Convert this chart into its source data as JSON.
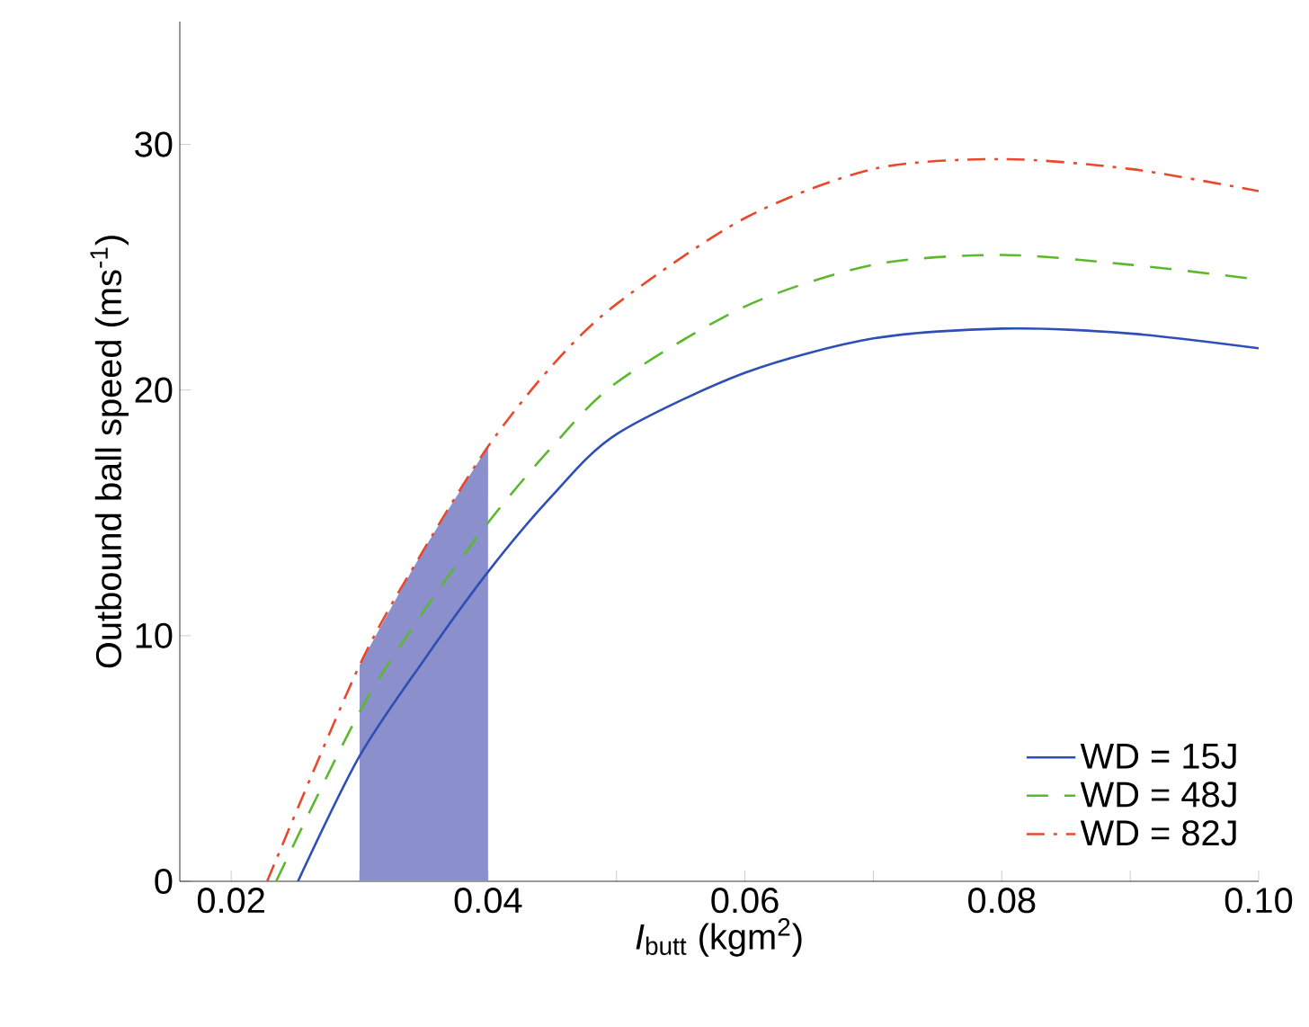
{
  "chart_data": {
    "type": "line",
    "xlabel": "*I*$_{butt}$ (kgm$^{2}$)",
    "ylabel": "Outbound ball speed (ms$^{-1}$)",
    "xlim": [
      0.016,
      0.1
    ],
    "ylim": [
      0,
      35
    ],
    "xticks": [
      0.02,
      {
        "value": 0.03,
        "label": null
      },
      0.04,
      {
        "value": 0.05,
        "label": null
      },
      0.06,
      {
        "value": 0.07,
        "label": null
      },
      0.08,
      {
        "value": 0.09,
        "label": null
      },
      {
        "value": 0.1,
        "label": "0.10"
      }
    ],
    "yticks": [
      0,
      10,
      20,
      30
    ],
    "legend": "bottom right",
    "grid": false,
    "series": [
      {
        "type": "area",
        "color": "#8b8fcc",
        "x": [
          0.03,
          0.035,
          0.04
        ],
        "values": [
          8.8,
          13.5,
          17.7
        ]
      },
      {
        "name": "WD = 15J",
        "color": "#2e4fb5",
        "line_style": "solid",
        "x": [
          0.0252,
          0.03,
          0.035,
          0.04,
          0.045,
          0.05,
          0.06,
          0.07,
          0.08,
          0.09,
          0.1
        ],
        "values": [
          0,
          5.1,
          9.0,
          12.6,
          15.7,
          18.2,
          20.7,
          22.1,
          22.5,
          22.3,
          21.7
        ]
      },
      {
        "name": "WD = 48J",
        "color": "#5cb82e",
        "line_style": "dashed",
        "x": [
          0.0235,
          0.03,
          0.035,
          0.04,
          0.045,
          0.05,
          0.06,
          0.07,
          0.08,
          0.09,
          0.1
        ],
        "values": [
          0,
          6.9,
          11.0,
          14.6,
          17.7,
          20.3,
          23.4,
          25.1,
          25.5,
          25.1,
          24.5
        ]
      },
      {
        "name": "WD = 82J",
        "color": "#e8492c",
        "line_style": "dashdotted",
        "x": [
          0.0228,
          0.03,
          0.035,
          0.04,
          0.045,
          0.05,
          0.06,
          0.07,
          0.08,
          0.09,
          0.1
        ],
        "values": [
          0,
          8.8,
          13.5,
          17.7,
          21.0,
          23.5,
          27.0,
          29.0,
          29.4,
          29.0,
          28.1
        ]
      }
    ]
  }
}
